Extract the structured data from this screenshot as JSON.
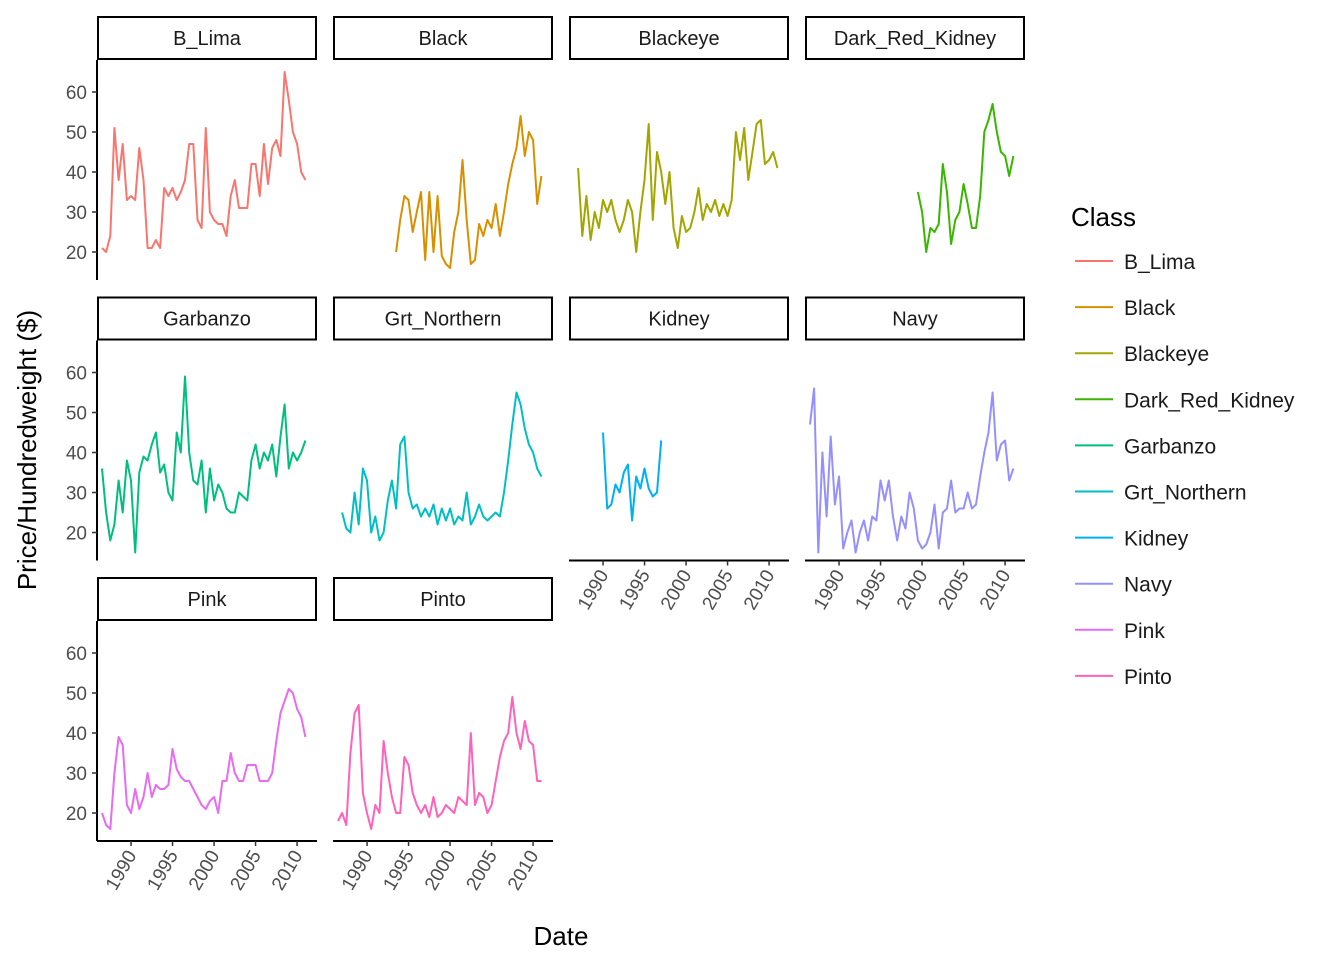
{
  "chart_data": {
    "type": "line",
    "facet": true,
    "x_label": "Date",
    "y_label": "Price/Hundredweight ($)",
    "legend_title": "Class",
    "xlim": [
      1985.9,
      2012.4
    ],
    "ylim": [
      13,
      68
    ],
    "xticks": [
      1990,
      1995,
      2000,
      2005,
      2010
    ],
    "yticks": [
      20,
      30,
      40,
      50,
      60
    ],
    "x": [
      1986.5,
      1987,
      1987.5,
      1988,
      1988.5,
      1989,
      1989.5,
      1990,
      1990.5,
      1991,
      1991.5,
      1992,
      1992.5,
      1993,
      1993.5,
      1994,
      1994.5,
      1995,
      1995.5,
      1996,
      1996.5,
      1997,
      1997.5,
      1998,
      1998.5,
      1999,
      1999.5,
      2000,
      2000.5,
      2001,
      2001.5,
      2002,
      2002.5,
      2003,
      2003.5,
      2004,
      2004.5,
      2005,
      2005.5,
      2006,
      2006.5,
      2007,
      2007.5,
      2008,
      2008.5,
      2009,
      2009.5,
      2010,
      2010.5,
      2011
    ],
    "series": [
      {
        "name": "B_Lima",
        "color": "#F8766D",
        "values": [
          21,
          20,
          24,
          51,
          38,
          47,
          33,
          34,
          33,
          46,
          38,
          21,
          21,
          23,
          21,
          36,
          34,
          36,
          33,
          35,
          38,
          47,
          47,
          28,
          26,
          51,
          30,
          28,
          27,
          27,
          24,
          34,
          38,
          31,
          31,
          31,
          42,
          42,
          34,
          47,
          37,
          46,
          48,
          44,
          65,
          58,
          50,
          47,
          40,
          38
        ]
      },
      {
        "name": "Black",
        "color": "#D89000",
        "values": [
          null,
          null,
          null,
          null,
          null,
          null,
          null,
          null,
          null,
          null,
          null,
          null,
          null,
          null,
          20,
          28,
          34,
          33,
          25,
          30,
          35,
          18,
          35,
          20,
          34,
          19,
          17,
          16,
          25,
          30,
          43,
          28,
          17,
          18,
          27,
          24,
          28,
          26,
          32,
          24,
          30,
          37,
          42,
          46,
          54,
          44,
          50,
          48,
          32,
          39
        ]
      },
      {
        "name": "Blackeye",
        "color": "#A3A500",
        "values": [
          null,
          41,
          24,
          34,
          23,
          30,
          26,
          33,
          30,
          33,
          28,
          25,
          28,
          33,
          30,
          20,
          30,
          38,
          52,
          28,
          45,
          40,
          32,
          40,
          26,
          21,
          29,
          25,
          26,
          30,
          36,
          28,
          32,
          30,
          33,
          29,
          32,
          29,
          33,
          50,
          43,
          51,
          38,
          45,
          52,
          53,
          42,
          43,
          45,
          41
        ]
      },
      {
        "name": "Dark_Red_Kidney",
        "color": "#39B600",
        "values": [
          null,
          null,
          null,
          null,
          null,
          null,
          null,
          null,
          null,
          null,
          null,
          null,
          null,
          null,
          null,
          null,
          null,
          null,
          null,
          null,
          null,
          null,
          null,
          null,
          null,
          null,
          35,
          30,
          20,
          26,
          25,
          27,
          42,
          35,
          22,
          28,
          30,
          37,
          32,
          26,
          26,
          34,
          50,
          53,
          57,
          50,
          45,
          44,
          39,
          44
        ]
      },
      {
        "name": "Garbanzo",
        "color": "#00BF7D",
        "values": [
          36,
          25,
          18,
          22,
          33,
          25,
          38,
          33,
          15,
          35,
          39,
          38,
          42,
          45,
          35,
          37,
          30,
          28,
          45,
          40,
          59,
          40,
          33,
          32,
          38,
          25,
          36,
          28,
          32,
          30,
          26,
          25,
          25,
          30,
          29,
          28,
          38,
          42,
          36,
          40,
          38,
          42,
          34,
          44,
          52,
          36,
          40,
          38,
          40,
          43
        ]
      },
      {
        "name": "Grt_Northern",
        "color": "#00BFC4",
        "values": [
          null,
          25,
          21,
          20,
          30,
          22,
          36,
          33,
          20,
          24,
          18,
          20,
          28,
          33,
          26,
          42,
          44,
          30,
          26,
          27,
          24,
          26,
          24,
          27,
          22,
          26,
          23,
          26,
          22,
          24,
          23,
          30,
          22,
          24,
          27,
          24,
          23,
          24,
          25,
          24,
          30,
          38,
          47,
          55,
          52,
          46,
          42,
          40,
          36,
          34
        ]
      },
      {
        "name": "Kidney",
        "color": "#00B0F6",
        "values": [
          null,
          null,
          null,
          null,
          null,
          null,
          null,
          45,
          26,
          27,
          32,
          30,
          35,
          37,
          23,
          34,
          31,
          36,
          31,
          29,
          30,
          43,
          null,
          null,
          null,
          null,
          null,
          null,
          null,
          null,
          null,
          null,
          null,
          null,
          null,
          null,
          null,
          null,
          null,
          null,
          null,
          null,
          null,
          null,
          null,
          null,
          null,
          null,
          null,
          null
        ]
      },
      {
        "name": "Navy",
        "color": "#9590FF",
        "values": [
          47,
          56,
          15,
          40,
          24,
          44,
          27,
          34,
          16,
          20,
          23,
          15,
          20,
          23,
          18,
          24,
          23,
          33,
          28,
          33,
          24,
          18,
          24,
          21,
          30,
          26,
          18,
          16,
          17,
          20,
          27,
          16,
          25,
          26,
          33,
          25,
          26,
          26,
          30,
          26,
          27,
          34,
          40,
          45,
          55,
          38,
          42,
          43,
          33,
          36
        ]
      },
      {
        "name": "Pink",
        "color": "#E76BF3",
        "values": [
          20,
          17,
          16,
          30,
          39,
          37,
          22,
          20,
          26,
          21,
          24,
          30,
          24,
          27,
          26,
          26,
          27,
          36,
          31,
          29,
          28,
          28,
          26,
          24,
          22,
          21,
          23,
          24,
          20,
          28,
          28,
          35,
          30,
          28,
          28,
          32,
          32,
          32,
          28,
          28,
          28,
          30,
          38,
          45,
          48,
          51,
          50,
          46,
          44,
          39
        ]
      },
      {
        "name": "Pinto",
        "color": "#FF62BC",
        "values": [
          18,
          20,
          17,
          35,
          45,
          47,
          25,
          20,
          16,
          22,
          20,
          38,
          30,
          24,
          20,
          20,
          34,
          32,
          25,
          22,
          20,
          22,
          19,
          24,
          19,
          20,
          22,
          21,
          20,
          24,
          23,
          22,
          40,
          22,
          25,
          24,
          20,
          22,
          28,
          34,
          38,
          40,
          49,
          40,
          36,
          43,
          38,
          37,
          28,
          28
        ]
      }
    ]
  }
}
